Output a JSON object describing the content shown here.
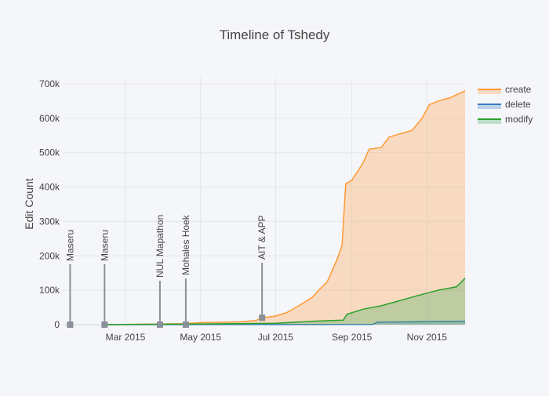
{
  "chart_data": {
    "type": "area",
    "title": "Timeline of Tshedy",
    "xlabel": "",
    "ylabel": "Edit Count",
    "xlim": [
      "2015-01-09",
      "2015-12-02"
    ],
    "ylim": [
      0,
      700000
    ],
    "yticks": [
      0,
      100000,
      200000,
      300000,
      400000,
      500000,
      600000,
      700000
    ],
    "ytick_labels": [
      "0",
      "100k",
      "200k",
      "300k",
      "400k",
      "500k",
      "600k",
      "700k"
    ],
    "xticks": [
      "2015-03-01",
      "2015-05-01",
      "2015-07-01",
      "2015-09-01",
      "2015-11-01"
    ],
    "xtick_labels": [
      "Mar 2015",
      "May 2015",
      "Jul 2015",
      "Sep 2015",
      "Nov 2015"
    ],
    "legend_position": "top-right",
    "series": [
      {
        "name": "create",
        "color": "#ff9933",
        "fill": "rgba(255,165,90,0.35)",
        "points": [
          [
            "2015-02-10",
            0
          ],
          [
            "2015-04-19",
            3000
          ],
          [
            "2015-05-01",
            6000
          ],
          [
            "2015-06-01",
            8000
          ],
          [
            "2015-06-15",
            12000
          ],
          [
            "2015-06-20",
            20000
          ],
          [
            "2015-07-01",
            25000
          ],
          [
            "2015-07-10",
            35000
          ],
          [
            "2015-07-20",
            55000
          ],
          [
            "2015-07-31",
            80000
          ],
          [
            "2015-08-05",
            100000
          ],
          [
            "2015-08-12",
            125000
          ],
          [
            "2015-08-20",
            190000
          ],
          [
            "2015-08-24",
            230000
          ],
          [
            "2015-08-27",
            410000
          ],
          [
            "2015-09-01",
            420000
          ],
          [
            "2015-09-10",
            470000
          ],
          [
            "2015-09-15",
            510000
          ],
          [
            "2015-09-25",
            515000
          ],
          [
            "2015-10-01",
            545000
          ],
          [
            "2015-10-10",
            555000
          ],
          [
            "2015-10-20",
            565000
          ],
          [
            "2015-10-28",
            600000
          ],
          [
            "2015-11-03",
            640000
          ],
          [
            "2015-11-10",
            650000
          ],
          [
            "2015-11-20",
            660000
          ],
          [
            "2015-12-02",
            680000
          ]
        ]
      },
      {
        "name": "delete",
        "color": "#3a7dbf",
        "fill": "rgba(80,140,200,0.35)",
        "points": [
          [
            "2015-02-10",
            0
          ],
          [
            "2015-09-18",
            1000
          ],
          [
            "2015-09-22",
            7000
          ],
          [
            "2015-11-01",
            9000
          ],
          [
            "2015-12-02",
            10000
          ]
        ]
      },
      {
        "name": "modify",
        "color": "#2ca02c",
        "fill": "rgba(60,170,90,0.3)",
        "points": [
          [
            "2015-02-10",
            0
          ],
          [
            "2015-05-01",
            2000
          ],
          [
            "2015-07-01",
            4000
          ],
          [
            "2015-08-01",
            10000
          ],
          [
            "2015-08-25",
            13000
          ],
          [
            "2015-08-28",
            30000
          ],
          [
            "2015-09-10",
            45000
          ],
          [
            "2015-09-25",
            55000
          ],
          [
            "2015-10-10",
            70000
          ],
          [
            "2015-10-25",
            85000
          ],
          [
            "2015-11-10",
            100000
          ],
          [
            "2015-11-25",
            110000
          ],
          [
            "2015-12-02",
            135000
          ]
        ]
      }
    ],
    "annotations": [
      {
        "date": "2015-01-15",
        "value": 0,
        "label": "Maseru"
      },
      {
        "date": "2015-02-12",
        "value": 0,
        "label": "Maseru"
      },
      {
        "date": "2015-03-29",
        "value": 0,
        "label": "NUL Mapathon"
      },
      {
        "date": "2015-04-19",
        "value": 0,
        "label": "Mohales Hoek"
      },
      {
        "date": "2015-06-20",
        "value": 20000,
        "label": "AIT & APP"
      }
    ]
  }
}
